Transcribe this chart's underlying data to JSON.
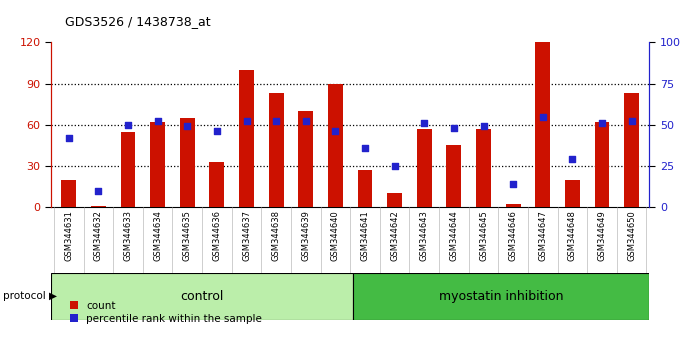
{
  "title": "GDS3526 / 1438738_at",
  "samples": [
    "GSM344631",
    "GSM344632",
    "GSM344633",
    "GSM344634",
    "GSM344635",
    "GSM344636",
    "GSM344637",
    "GSM344638",
    "GSM344639",
    "GSM344640",
    "GSM344641",
    "GSM344642",
    "GSM344643",
    "GSM344644",
    "GSM344645",
    "GSM344646",
    "GSM344647",
    "GSM344648",
    "GSM344649",
    "GSM344650"
  ],
  "counts": [
    20,
    1,
    55,
    62,
    65,
    33,
    100,
    83,
    70,
    90,
    27,
    10,
    57,
    45,
    57,
    2,
    120,
    20,
    62,
    83
  ],
  "percentiles": [
    42,
    10,
    50,
    52,
    49,
    46,
    52,
    52,
    52,
    46,
    36,
    25,
    51,
    48,
    49,
    14,
    55,
    29,
    51,
    52
  ],
  "control_count": 10,
  "myostatin_count": 10,
  "bar_color": "#cc1100",
  "dot_color": "#2222cc",
  "bg_color": "#ffffff",
  "xtick_bg_color": "#cccccc",
  "control_color": "#bbeeaa",
  "myostatin_color": "#44bb44",
  "left_axis_color": "#cc1100",
  "right_axis_color": "#2222cc",
  "ylim_left": [
    0,
    120
  ],
  "ylim_right": [
    0,
    100
  ],
  "yticks_left": [
    0,
    30,
    60,
    90,
    120
  ],
  "yticks_right": [
    0,
    25,
    50,
    75,
    100
  ],
  "legend_count_label": "count",
  "legend_pct_label": "percentile rank within the sample",
  "protocol_label": "protocol",
  "control_label": "control",
  "myostatin_label": "myostatin inhibition"
}
